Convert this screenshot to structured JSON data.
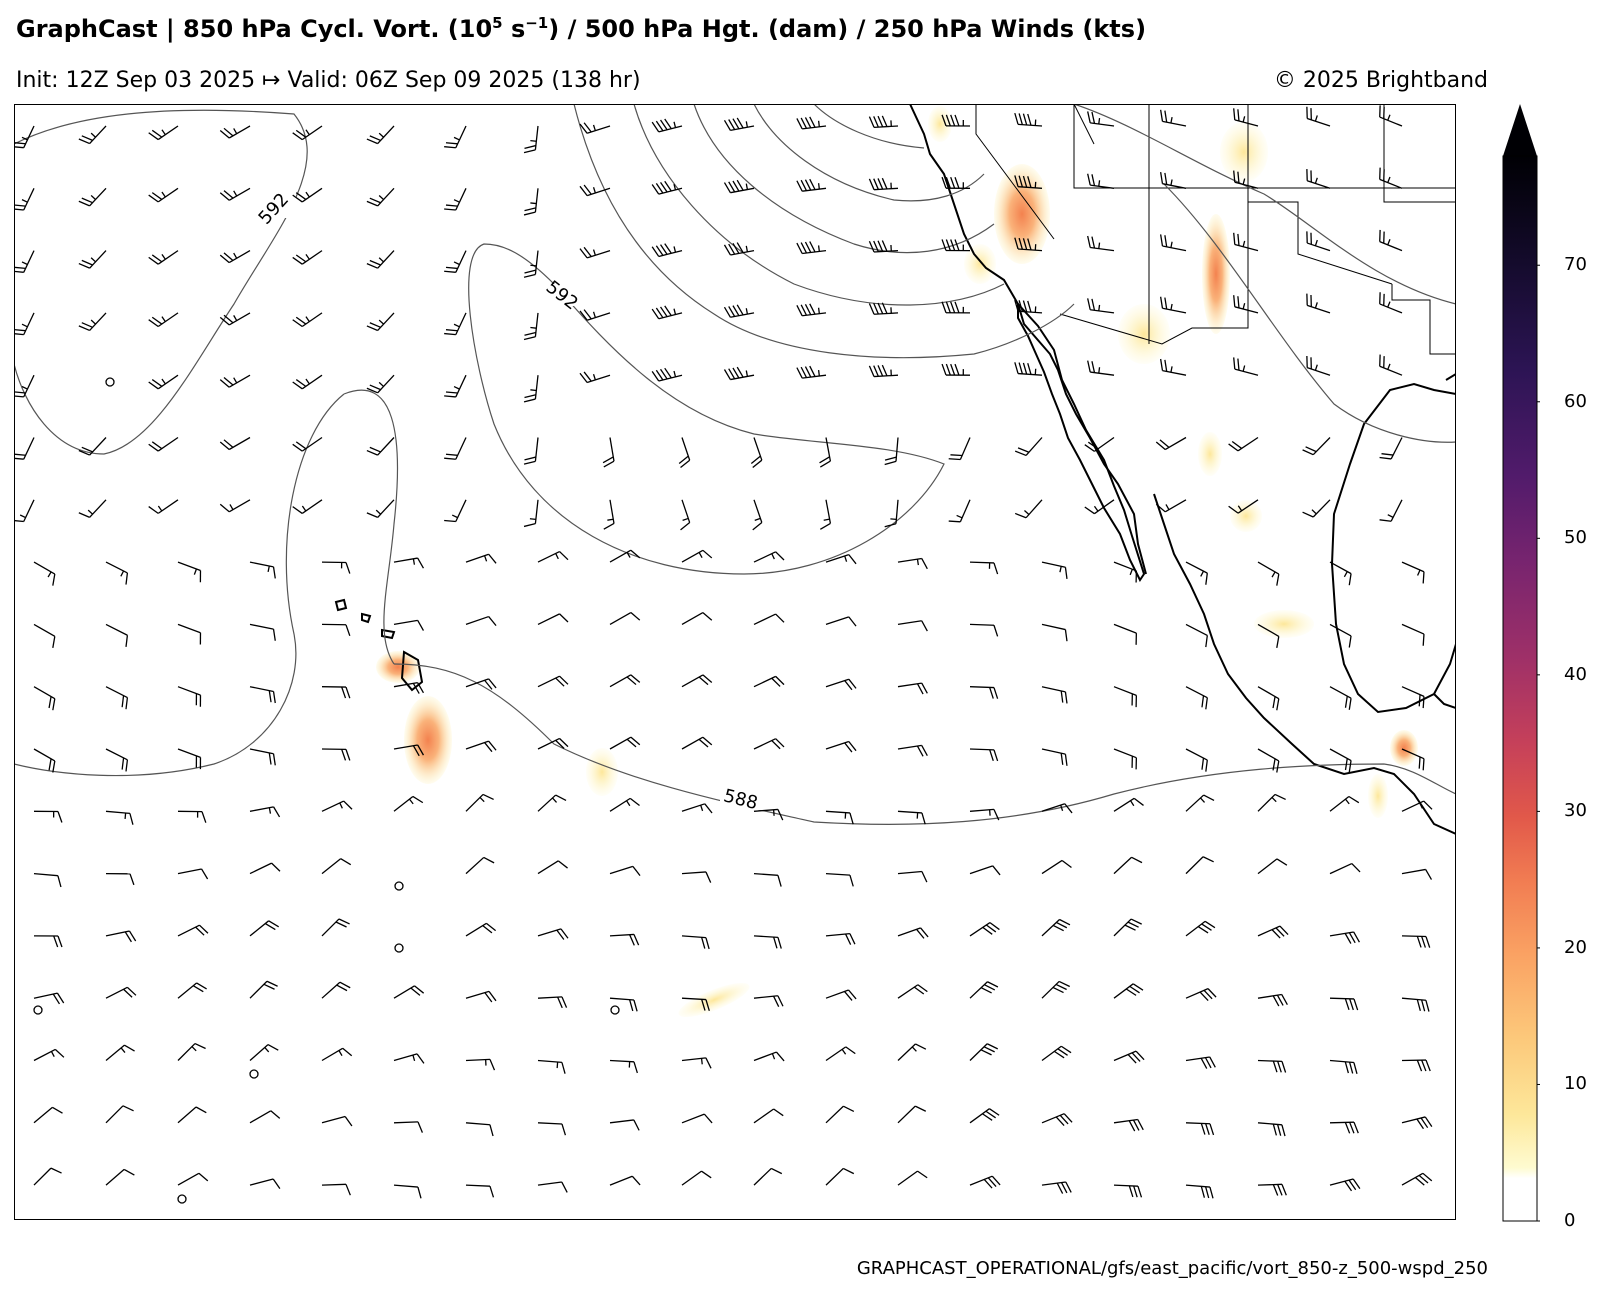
{
  "header": {
    "title_part1": "GraphCast | 850 hPa Cycl. Vort. (10",
    "title_sup1": "5",
    "title_part2": " s",
    "title_sup2": "−1",
    "title_part3": ") / 500 hPa Hgt. (dam) / 250 hPa Winds (kts)",
    "init_valid": "Init: 12Z Sep 03 2025 ↦ Valid: 06Z Sep 09 2025 (138 hr)",
    "copyright": "© 2025 Brightband"
  },
  "footer": {
    "path": "GRAPHCAST_OPERATIONAL/gfs/east_pacific/vort_850-z_500-wspd_250"
  },
  "colorbar": {
    "ticks": [
      "0",
      "10",
      "20",
      "30",
      "40",
      "50",
      "60",
      "70"
    ],
    "extend": "max",
    "colors": [
      "#fffff0",
      "#fef3a8",
      "#fde28f",
      "#fcc479",
      "#f9a061",
      "#f3774f",
      "#e35146",
      "#c73b58",
      "#a32c68",
      "#7a2370",
      "#541c6c",
      "#2f1457",
      "#150b2e",
      "#000004"
    ]
  },
  "contours": {
    "labels": [
      "592",
      "592",
      "588"
    ]
  },
  "map_colors": {
    "coast": "#000000",
    "border": "#000000",
    "contour": "#555555"
  }
}
